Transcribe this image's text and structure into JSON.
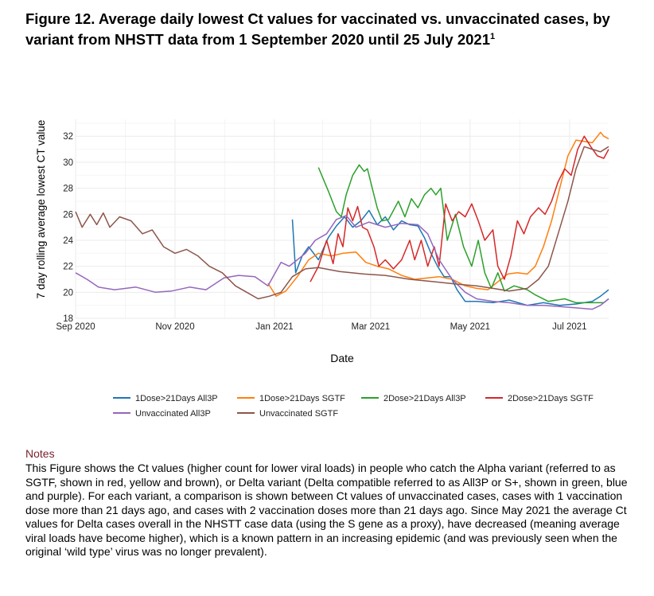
{
  "title": "Figure 12. Average daily lowest Ct values for vaccinated vs. unvaccinated cases, by variant from NHSTT data from 1 September 2020 until 25 July 2021",
  "title_sup": "1",
  "notes_heading": "Notes",
  "notes_text": "This Figure shows the Ct values (higher count for lower viral loads) in people who catch the Alpha variant (referred to as SGTF, shown in red, yellow and brown), or Delta variant (Delta compatible referred to as All3P or S+, shown in green, blue and purple). For each variant, a comparison is shown between Ct values of unvaccinated cases, cases with 1 vaccination dose more than 21 days ago, and cases with 2 vaccination doses more than 21 days ago. Since May 2021 the average Ct values for Delta cases overall in the NHSTT case data (using the S gene as a proxy), have decreased (meaning average viral loads have become higher), which is a known pattern in an increasing epidemic (and was previously seen when the original ‘wild type’ virus was no longer prevalent).",
  "chart_data": {
    "type": "line",
    "xlabel": "Date",
    "ylabel": "7 day rolling average lowest CT value",
    "x_ticks": [
      "2020-09-01",
      "2020-11-01",
      "2021-01-01",
      "2021-03-01",
      "2021-05-01",
      "2021-07-01"
    ],
    "x_tick_labels": [
      "Sep 2020",
      "Nov 2020",
      "Jan 2021",
      "Mar 2021",
      "May 2021",
      "Jul 2021"
    ],
    "xlim": [
      "2020-09-01",
      "2021-07-25"
    ],
    "y_ticks": [
      18,
      20,
      22,
      24,
      26,
      28,
      30,
      32
    ],
    "ylim": [
      18,
      33.3
    ],
    "grid": true,
    "legend_position": "bottom",
    "series": [
      {
        "name": "1Dose>21Days All3P",
        "color": "#1f77b4",
        "points": [
          [
            "2021-01-12",
            25.6
          ],
          [
            "2021-01-14",
            21.5
          ],
          [
            "2021-01-18",
            22.8
          ],
          [
            "2021-01-22",
            23.5
          ],
          [
            "2021-01-28",
            22.5
          ],
          [
            "2021-02-03",
            24.2
          ],
          [
            "2021-02-08",
            25.1
          ],
          [
            "2021-02-13",
            25.8
          ],
          [
            "2021-02-18",
            25.0
          ],
          [
            "2021-02-23",
            25.5
          ],
          [
            "2021-02-28",
            26.3
          ],
          [
            "2021-03-05",
            25.2
          ],
          [
            "2021-03-10",
            25.8
          ],
          [
            "2021-03-15",
            24.8
          ],
          [
            "2021-03-20",
            25.5
          ],
          [
            "2021-03-25",
            25.2
          ],
          [
            "2021-03-30",
            25.1
          ],
          [
            "2021-04-03",
            24.2
          ],
          [
            "2021-04-07",
            23.0
          ],
          [
            "2021-04-11",
            22.0
          ],
          [
            "2021-04-15",
            21.2
          ],
          [
            "2021-04-19",
            21.2
          ],
          [
            "2021-04-23",
            20.2
          ],
          [
            "2021-04-28",
            19.3
          ],
          [
            "2021-05-05",
            19.3
          ],
          [
            "2021-05-15",
            19.2
          ],
          [
            "2021-05-25",
            19.4
          ],
          [
            "2021-06-05",
            19.0
          ],
          [
            "2021-06-15",
            19.2
          ],
          [
            "2021-06-25",
            19.0
          ],
          [
            "2021-07-05",
            19.1
          ],
          [
            "2021-07-15",
            19.3
          ],
          [
            "2021-07-20",
            19.7
          ],
          [
            "2021-07-25",
            20.2
          ]
        ]
      },
      {
        "name": "1Dose>21Days SGTF",
        "color": "#ff7f0e",
        "points": [
          [
            "2020-12-28",
            20.7
          ],
          [
            "2021-01-02",
            19.7
          ],
          [
            "2021-01-08",
            20.1
          ],
          [
            "2021-01-15",
            21.2
          ],
          [
            "2021-01-22",
            22.5
          ],
          [
            "2021-01-28",
            23.0
          ],
          [
            "2021-02-05",
            22.8
          ],
          [
            "2021-02-12",
            23.0
          ],
          [
            "2021-02-20",
            23.1
          ],
          [
            "2021-02-26",
            22.3
          ],
          [
            "2021-03-05",
            22.0
          ],
          [
            "2021-03-12",
            21.8
          ],
          [
            "2021-03-20",
            21.3
          ],
          [
            "2021-03-28",
            21.0
          ],
          [
            "2021-04-05",
            21.1
          ],
          [
            "2021-04-12",
            21.2
          ],
          [
            "2021-04-20",
            21.0
          ],
          [
            "2021-04-28",
            20.5
          ],
          [
            "2021-05-05",
            20.3
          ],
          [
            "2021-05-12",
            20.2
          ],
          [
            "2021-05-18",
            20.8
          ],
          [
            "2021-05-24",
            21.4
          ],
          [
            "2021-05-30",
            21.5
          ],
          [
            "2021-06-05",
            21.4
          ],
          [
            "2021-06-10",
            22.0
          ],
          [
            "2021-06-15",
            23.5
          ],
          [
            "2021-06-20",
            25.5
          ],
          [
            "2021-06-25",
            28.0
          ],
          [
            "2021-06-30",
            30.5
          ],
          [
            "2021-07-05",
            31.7
          ],
          [
            "2021-07-10",
            31.6
          ],
          [
            "2021-07-15",
            31.5
          ],
          [
            "2021-07-20",
            32.3
          ],
          [
            "2021-07-22",
            32.0
          ],
          [
            "2021-07-25",
            31.8
          ]
        ]
      },
      {
        "name": "2Dose>21Days All3P",
        "color": "#2ca02c",
        "points": [
          [
            "2021-01-28",
            29.6
          ],
          [
            "2021-02-03",
            27.8
          ],
          [
            "2021-02-08",
            26.2
          ],
          [
            "2021-02-11",
            25.8
          ],
          [
            "2021-02-14",
            27.5
          ],
          [
            "2021-02-18",
            29.0
          ],
          [
            "2021-02-22",
            29.8
          ],
          [
            "2021-02-25",
            29.3
          ],
          [
            "2021-02-27",
            29.5
          ],
          [
            "2021-03-02",
            28.0
          ],
          [
            "2021-03-05",
            26.5
          ],
          [
            "2021-03-08",
            25.5
          ],
          [
            "2021-03-12",
            25.6
          ],
          [
            "2021-03-18",
            27.0
          ],
          [
            "2021-03-22",
            25.8
          ],
          [
            "2021-03-26",
            27.2
          ],
          [
            "2021-03-30",
            26.5
          ],
          [
            "2021-04-03",
            27.5
          ],
          [
            "2021-04-07",
            28.0
          ],
          [
            "2021-04-10",
            27.5
          ],
          [
            "2021-04-13",
            28.0
          ],
          [
            "2021-04-17",
            24.0
          ],
          [
            "2021-04-22",
            26.0
          ],
          [
            "2021-04-27",
            23.5
          ],
          [
            "2021-05-02",
            22.0
          ],
          [
            "2021-05-06",
            24.0
          ],
          [
            "2021-05-10",
            21.5
          ],
          [
            "2021-05-14",
            20.3
          ],
          [
            "2021-05-18",
            21.5
          ],
          [
            "2021-05-22",
            20.1
          ],
          [
            "2021-05-28",
            20.5
          ],
          [
            "2021-06-05",
            20.2
          ],
          [
            "2021-06-10",
            19.8
          ],
          [
            "2021-06-18",
            19.3
          ],
          [
            "2021-06-28",
            19.5
          ],
          [
            "2021-07-05",
            19.2
          ],
          [
            "2021-07-15",
            19.2
          ],
          [
            "2021-07-22",
            19.2
          ],
          [
            "2021-07-25",
            19.5
          ]
        ]
      },
      {
        "name": "2Dose>21Days SGTF",
        "color": "#d62728",
        "points": [
          [
            "2021-01-23",
            20.8
          ],
          [
            "2021-01-28",
            22.0
          ],
          [
            "2021-02-02",
            24.0
          ],
          [
            "2021-02-06",
            22.2
          ],
          [
            "2021-02-09",
            24.5
          ],
          [
            "2021-02-12",
            23.5
          ],
          [
            "2021-02-15",
            26.5
          ],
          [
            "2021-02-18",
            25.5
          ],
          [
            "2021-02-21",
            26.6
          ],
          [
            "2021-02-24",
            25.0
          ],
          [
            "2021-02-27",
            24.8
          ],
          [
            "2021-03-03",
            23.5
          ],
          [
            "2021-03-06",
            22.0
          ],
          [
            "2021-03-10",
            22.5
          ],
          [
            "2021-03-15",
            21.8
          ],
          [
            "2021-03-20",
            22.5
          ],
          [
            "2021-03-25",
            24.0
          ],
          [
            "2021-03-28",
            22.5
          ],
          [
            "2021-04-01",
            24.0
          ],
          [
            "2021-04-05",
            22.0
          ],
          [
            "2021-04-09",
            23.5
          ],
          [
            "2021-04-12",
            22.0
          ],
          [
            "2021-04-16",
            26.8
          ],
          [
            "2021-04-20",
            25.5
          ],
          [
            "2021-04-24",
            26.2
          ],
          [
            "2021-04-28",
            25.8
          ],
          [
            "2021-05-02",
            26.8
          ],
          [
            "2021-05-06",
            25.5
          ],
          [
            "2021-05-10",
            24.0
          ],
          [
            "2021-05-15",
            24.8
          ],
          [
            "2021-05-18",
            22.0
          ],
          [
            "2021-05-22",
            21.0
          ],
          [
            "2021-05-26",
            22.8
          ],
          [
            "2021-05-30",
            25.5
          ],
          [
            "2021-06-03",
            24.5
          ],
          [
            "2021-06-07",
            25.8
          ],
          [
            "2021-06-12",
            26.5
          ],
          [
            "2021-06-16",
            26.0
          ],
          [
            "2021-06-20",
            27.0
          ],
          [
            "2021-06-24",
            28.5
          ],
          [
            "2021-06-28",
            29.5
          ],
          [
            "2021-07-02",
            29.0
          ],
          [
            "2021-07-06",
            31.0
          ],
          [
            "2021-07-10",
            32.0
          ],
          [
            "2021-07-14",
            31.2
          ],
          [
            "2021-07-18",
            30.5
          ],
          [
            "2021-07-22",
            30.3
          ],
          [
            "2021-07-25",
            31.0
          ]
        ]
      },
      {
        "name": "Unvaccinated All3P",
        "color": "#9467bd",
        "points": [
          [
            "2020-09-01",
            21.5
          ],
          [
            "2020-09-08",
            21.0
          ],
          [
            "2020-09-15",
            20.4
          ],
          [
            "2020-09-25",
            20.2
          ],
          [
            "2020-10-08",
            20.4
          ],
          [
            "2020-10-20",
            20.0
          ],
          [
            "2020-10-30",
            20.1
          ],
          [
            "2020-11-10",
            20.4
          ],
          [
            "2020-11-20",
            20.2
          ],
          [
            "2020-12-01",
            21.1
          ],
          [
            "2020-12-10",
            21.3
          ],
          [
            "2020-12-20",
            21.2
          ],
          [
            "2020-12-28",
            20.5
          ],
          [
            "2021-01-05",
            22.3
          ],
          [
            "2021-01-10",
            22.0
          ],
          [
            "2021-01-15",
            22.5
          ],
          [
            "2021-01-20",
            23.0
          ],
          [
            "2021-01-26",
            24.0
          ],
          [
            "2021-02-02",
            24.5
          ],
          [
            "2021-02-08",
            25.6
          ],
          [
            "2021-02-14",
            25.9
          ],
          [
            "2021-02-20",
            25.0
          ],
          [
            "2021-02-28",
            25.4
          ],
          [
            "2021-03-10",
            25.0
          ],
          [
            "2021-03-20",
            25.3
          ],
          [
            "2021-03-30",
            25.2
          ],
          [
            "2021-04-05",
            24.5
          ],
          [
            "2021-04-12",
            22.5
          ],
          [
            "2021-04-20",
            21.0
          ],
          [
            "2021-04-28",
            20.0
          ],
          [
            "2021-05-05",
            19.5
          ],
          [
            "2021-05-15",
            19.3
          ],
          [
            "2021-05-25",
            19.2
          ],
          [
            "2021-06-05",
            19.0
          ],
          [
            "2021-06-15",
            19.0
          ],
          [
            "2021-06-25",
            18.9
          ],
          [
            "2021-07-05",
            18.8
          ],
          [
            "2021-07-15",
            18.7
          ],
          [
            "2021-07-20",
            19.0
          ],
          [
            "2021-07-25",
            19.5
          ]
        ]
      },
      {
        "name": "Unvaccinated SGTF",
        "color": "#8c564b",
        "points": [
          [
            "2020-09-01",
            26.2
          ],
          [
            "2020-09-05",
            25.0
          ],
          [
            "2020-09-10",
            26.0
          ],
          [
            "2020-09-14",
            25.2
          ],
          [
            "2020-09-18",
            26.1
          ],
          [
            "2020-09-22",
            25.0
          ],
          [
            "2020-09-28",
            25.8
          ],
          [
            "2020-10-05",
            25.5
          ],
          [
            "2020-10-12",
            24.5
          ],
          [
            "2020-10-18",
            24.8
          ],
          [
            "2020-10-25",
            23.5
          ],
          [
            "2020-11-01",
            23.0
          ],
          [
            "2020-11-08",
            23.3
          ],
          [
            "2020-11-15",
            22.8
          ],
          [
            "2020-11-22",
            22.0
          ],
          [
            "2020-11-30",
            21.5
          ],
          [
            "2020-12-08",
            20.5
          ],
          [
            "2020-12-15",
            20.0
          ],
          [
            "2020-12-22",
            19.5
          ],
          [
            "2020-12-29",
            19.7
          ],
          [
            "2021-01-05",
            20.0
          ],
          [
            "2021-01-12",
            21.2
          ],
          [
            "2021-01-20",
            21.8
          ],
          [
            "2021-01-28",
            21.9
          ],
          [
            "2021-02-10",
            21.6
          ],
          [
            "2021-02-25",
            21.4
          ],
          [
            "2021-03-10",
            21.3
          ],
          [
            "2021-03-25",
            21.0
          ],
          [
            "2021-04-10",
            20.8
          ],
          [
            "2021-04-25",
            20.6
          ],
          [
            "2021-05-05",
            20.5
          ],
          [
            "2021-05-15",
            20.3
          ],
          [
            "2021-05-25",
            20.1
          ],
          [
            "2021-06-05",
            20.3
          ],
          [
            "2021-06-12",
            21.0
          ],
          [
            "2021-06-18",
            22.0
          ],
          [
            "2021-06-24",
            24.5
          ],
          [
            "2021-06-30",
            27.0
          ],
          [
            "2021-07-05",
            29.5
          ],
          [
            "2021-07-10",
            31.2
          ],
          [
            "2021-07-15",
            31.0
          ],
          [
            "2021-07-20",
            30.8
          ],
          [
            "2021-07-25",
            31.2
          ]
        ]
      }
    ]
  }
}
